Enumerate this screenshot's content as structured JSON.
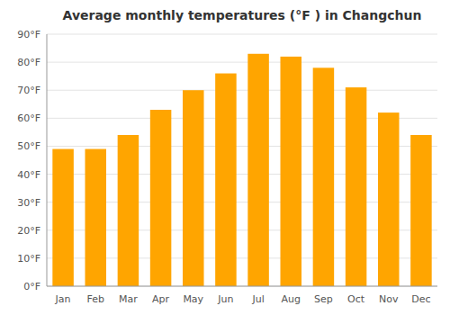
{
  "chart_data": {
    "type": "bar",
    "title": "Average monthly temperatures (°F ) in Changchun",
    "categories": [
      "Jan",
      "Feb",
      "Mar",
      "Apr",
      "May",
      "Jun",
      "Jul",
      "Aug",
      "Sep",
      "Oct",
      "Nov",
      "Dec"
    ],
    "values": [
      49,
      49,
      54,
      63,
      70,
      76,
      83,
      82,
      78,
      71,
      62,
      54
    ],
    "color": "#FFA500",
    "ylim": [
      0,
      90
    ],
    "yticks": [
      {
        "value": 0,
        "label": "0°F"
      },
      {
        "value": 10,
        "label": "10°F"
      },
      {
        "value": 20,
        "label": "20°F"
      },
      {
        "value": 30,
        "label": "30°F"
      },
      {
        "value": 40,
        "label": "40°F"
      },
      {
        "value": 50,
        "label": "50°F"
      },
      {
        "value": 60,
        "label": "60°F"
      },
      {
        "value": 70,
        "label": "70°F"
      },
      {
        "value": 80,
        "label": "80°F"
      },
      {
        "value": 90,
        "label": "90°F"
      }
    ],
    "grid": true
  }
}
